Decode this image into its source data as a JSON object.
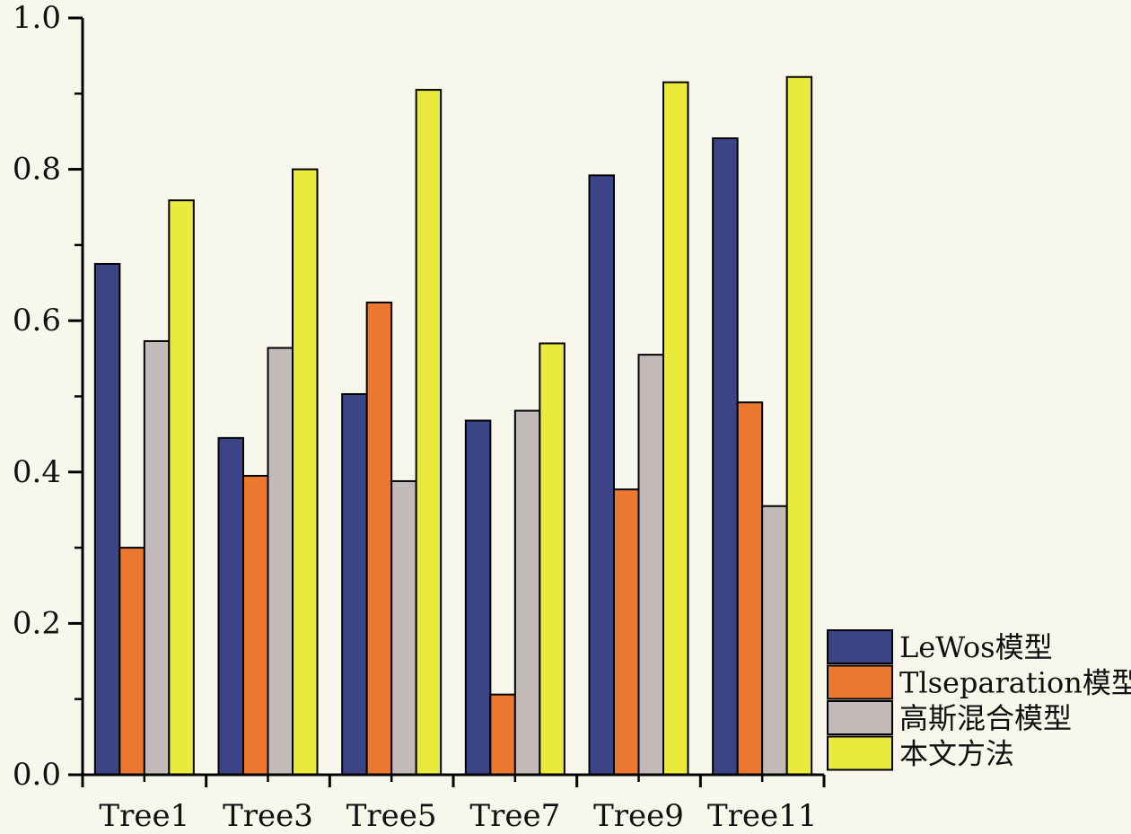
{
  "chart_data": {
    "type": "bar",
    "categories": [
      "Tree1",
      "Tree3",
      "Tree5",
      "Tree7",
      "Tree9",
      "Tree11"
    ],
    "series": [
      {
        "name": "LeWos模型",
        "color": "#3c4488",
        "values": [
          0.675,
          0.445,
          0.503,
          0.468,
          0.792,
          0.841
        ]
      },
      {
        "name": "Tlseparation模型",
        "color": "#ec7830",
        "values": [
          0.3,
          0.395,
          0.624,
          0.106,
          0.377,
          0.492
        ]
      },
      {
        "name": "高斯混合模型",
        "color": "#c2b9b9",
        "values": [
          0.573,
          0.564,
          0.388,
          0.481,
          0.555,
          0.355
        ]
      },
      {
        "name": "本文方法",
        "color": "#eaea3c",
        "values": [
          0.759,
          0.8,
          0.905,
          0.57,
          0.915,
          0.922
        ]
      }
    ],
    "ylim": [
      0.0,
      1.0
    ],
    "yticks": [
      0.0,
      0.2,
      0.4,
      0.6,
      0.8,
      1.0
    ],
    "ytick_labels": [
      "0.0",
      "0.2",
      "0.4",
      "0.6",
      "0.8",
      "1.0"
    ],
    "title": "",
    "xlabel": "",
    "ylabel": "",
    "legend_position": "bottom-right",
    "grid": false
  }
}
